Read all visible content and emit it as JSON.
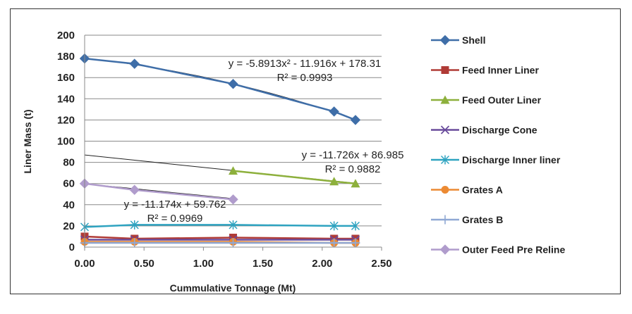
{
  "chart_data": {
    "type": "line",
    "title": "",
    "xlabel": "Cummulative Tonnage (Mt)",
    "ylabel": "Liner Mass (t)",
    "xlim": [
      0,
      2.5
    ],
    "ylim": [
      0,
      200
    ],
    "x_ticks": [
      "0.00",
      "0.50",
      "1.00",
      "1.50",
      "2.00",
      "2.50"
    ],
    "y_ticks": [
      "0",
      "20",
      "40",
      "60",
      "80",
      "100",
      "120",
      "140",
      "160",
      "180",
      "200"
    ],
    "grid": "horizontal",
    "legend_position": "right",
    "series": [
      {
        "name": "Shell",
        "color": "#3f6ea8",
        "marker": "diamond",
        "x": [
          0.0,
          0.42,
          1.25,
          2.1,
          2.28
        ],
        "y": [
          178,
          173,
          154,
          128,
          120
        ]
      },
      {
        "name": "Feed Inner Liner",
        "color": "#b03b36",
        "marker": "square",
        "x": [
          0.0,
          0.42,
          1.25,
          2.1,
          2.28
        ],
        "y": [
          10,
          8,
          9,
          8,
          8
        ]
      },
      {
        "name": "Feed Outer Liner",
        "color": "#8db03c",
        "marker": "triangle",
        "x": [
          1.25,
          2.1,
          2.28
        ],
        "y": [
          72,
          62,
          60
        ]
      },
      {
        "name": "Discharge Cone",
        "color": "#6a4c9c",
        "marker": "x",
        "x": [
          0.0,
          0.42,
          1.25,
          2.1,
          2.28
        ],
        "y": [
          7,
          7,
          7,
          7,
          7
        ]
      },
      {
        "name": "Discharge Inner liner",
        "color": "#2ea3c0",
        "marker": "star",
        "x": [
          0.0,
          0.42,
          1.25,
          2.1,
          2.28
        ],
        "y": [
          19,
          21,
          21,
          20,
          20
        ]
      },
      {
        "name": "Grates A",
        "color": "#ec8a33",
        "marker": "circle",
        "x": [
          0.0,
          0.42,
          1.25,
          2.1,
          2.28
        ],
        "y": [
          5,
          5,
          5,
          4,
          4
        ]
      },
      {
        "name": "Grates B",
        "color": "#8fa8d4",
        "marker": "plus",
        "x": [
          0.0,
          0.42,
          1.25,
          2.1,
          2.28
        ],
        "y": [
          4,
          4,
          4,
          4,
          4
        ]
      },
      {
        "name": "Outer Feed Pre Reline",
        "color": "#b09ccc",
        "marker": "diamond",
        "x": [
          0.0,
          0.42,
          1.25
        ],
        "y": [
          60,
          54,
          45
        ]
      }
    ],
    "trendlines": [
      {
        "kind": "poly2",
        "coef": [
          -5.8913,
          -11.916,
          178.31
        ],
        "x_range": [
          0,
          2.28
        ],
        "color": "#222222"
      },
      {
        "kind": "linear",
        "coef": [
          -11.726,
          86.985
        ],
        "x_range": [
          0,
          2.28
        ],
        "color": "#222222"
      },
      {
        "kind": "linear",
        "coef": [
          -11.174,
          59.762
        ],
        "x_range": [
          0,
          1.25
        ],
        "color": "#222222"
      }
    ],
    "annotations": [
      {
        "text": "y = -5.8913x² - 11.916x + 178.31",
        "near": "Shell"
      },
      {
        "text": "R² = 0.9993",
        "near": "Shell"
      },
      {
        "text": "y = -11.726x + 86.985",
        "near": "Feed Outer Liner"
      },
      {
        "text": "R² = 0.9882",
        "near": "Feed Outer Liner"
      },
      {
        "text": "y = -11.174x + 59.762",
        "near": "Outer Feed Pre Reline"
      },
      {
        "text": "R² = 0.9969",
        "near": "Outer Feed Pre Reline"
      }
    ]
  }
}
